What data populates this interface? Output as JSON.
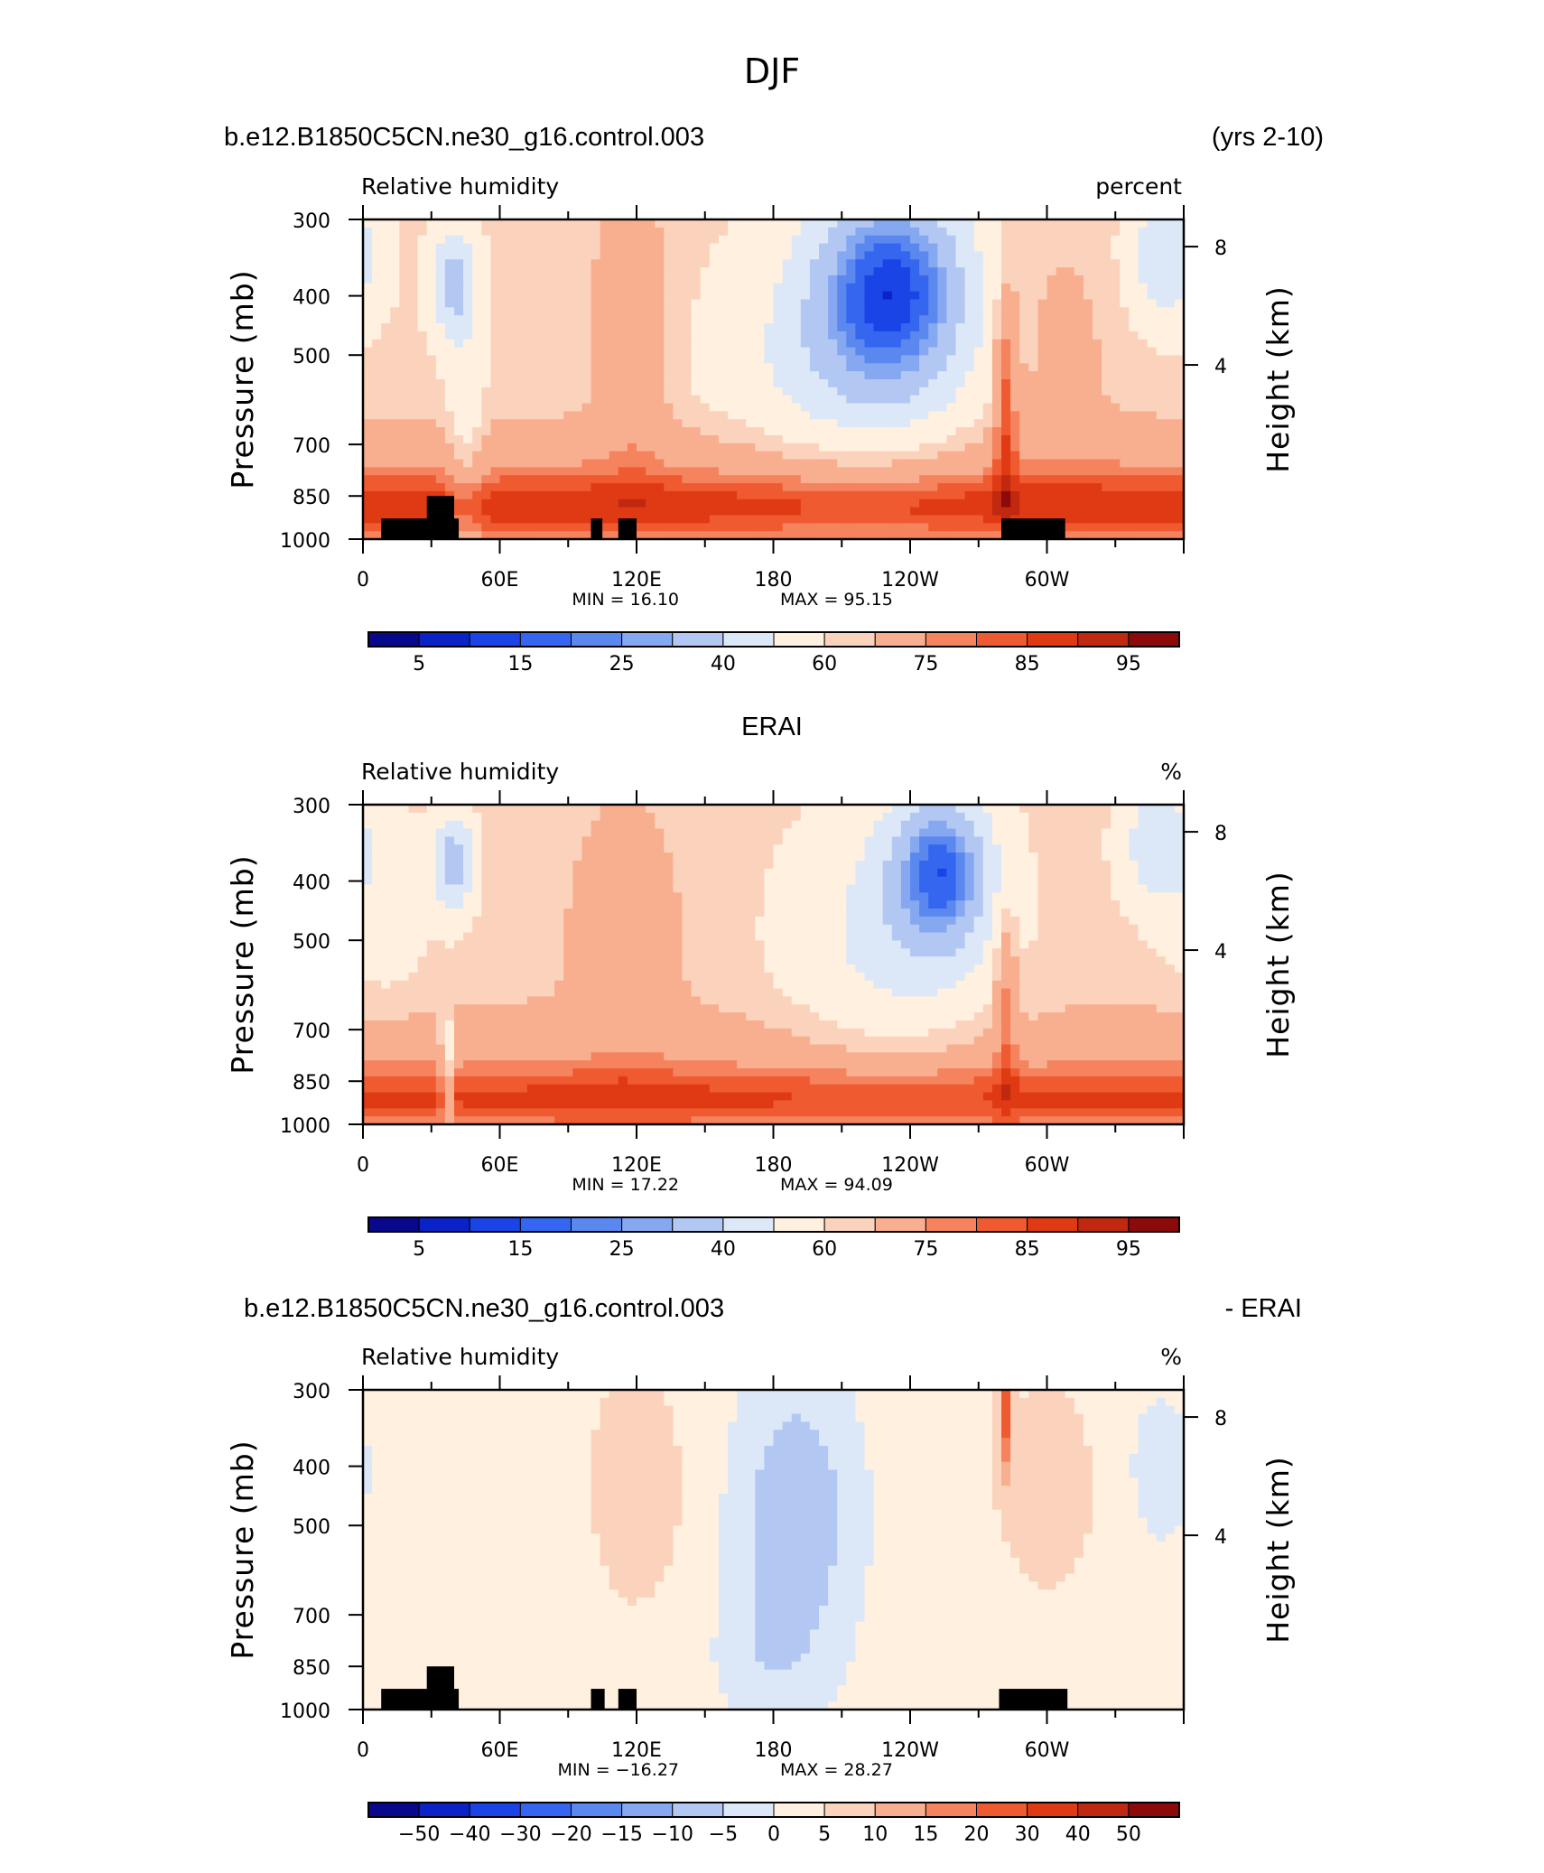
{
  "figure": {
    "title": "DJF",
    "run_name": "b.e12.B1850C5CN.ne30_g16.control.003",
    "years": "(yrs 2-10)",
    "obs_name": "ERAI",
    "diff_suffix": "- ERAI"
  },
  "colors": {
    "abs_scale": [
      "#08088c",
      "#0a22c8",
      "#1a44e6",
      "#3466f0",
      "#5a88ef",
      "#86a8f1",
      "#b2c8f3",
      "#dce8f8",
      "#fff0e0",
      "#fbd3bc",
      "#f8af8f",
      "#f4835e",
      "#f05a30",
      "#e03a14",
      "#c02810",
      "#8c0a0a"
    ],
    "diff_scale": [
      "#08088c",
      "#0a22c8",
      "#1a44e6",
      "#3466f0",
      "#5a88ef",
      "#86a8f1",
      "#b2c8f3",
      "#dce8f8",
      "#fff0e0",
      "#fbd3bc",
      "#f8af8f",
      "#f4835e",
      "#f05a30",
      "#e03a14",
      "#c02810",
      "#8c0a0a"
    ],
    "topography": "#000000"
  },
  "chart_data": [
    {
      "type": "heatmap",
      "title": "Relative humidity",
      "units": "percent",
      "ylabel": "Pressure (mb)",
      "ylabel_right": "Height (km)",
      "x_tick_labels": [
        "0",
        "60E",
        "120E",
        "180",
        "120W",
        "60W"
      ],
      "x_ticks_deg": [
        0,
        60,
        120,
        180,
        240,
        300
      ],
      "xlim_deg": [
        0,
        360
      ],
      "y_tick_labels": [
        "300",
        "400",
        "500",
        "700",
        "850",
        "1000"
      ],
      "y_ticks_mb": [
        300,
        400,
        500,
        700,
        850,
        1000
      ],
      "ylim_mb": [
        300,
        1000
      ],
      "height_tick_labels": [
        "8",
        "4"
      ],
      "height_ticks_km": [
        8,
        4
      ],
      "min_text": "MIN =   16.10",
      "max_text": "MAX =   95.15",
      "min": 16.1,
      "max": 95.15,
      "colorbar_labels": [
        "5",
        "15",
        "25",
        "40",
        "60",
        "75",
        "85",
        "95"
      ],
      "contour_levels": [
        5,
        10,
        15,
        20,
        25,
        30,
        40,
        50,
        60,
        65,
        75,
        80,
        85,
        90,
        95
      ],
      "field": "model",
      "topography_blocks": [
        {
          "lon": [
            8,
            42
          ],
          "p_top": 925
        },
        {
          "lon": [
            28,
            40
          ],
          "p_top": 850
        },
        {
          "lon": [
            100,
            105
          ],
          "p_top": 925
        },
        {
          "lon": [
            112,
            120
          ],
          "p_top": 925
        },
        {
          "lon": [
            280,
            308
          ],
          "p_top": 925
        }
      ]
    },
    {
      "type": "heatmap",
      "title": "Relative humidity",
      "units": "%",
      "ylabel": "Pressure (mb)",
      "ylabel_right": "Height (km)",
      "x_tick_labels": [
        "0",
        "60E",
        "120E",
        "180",
        "120W",
        "60W"
      ],
      "x_ticks_deg": [
        0,
        60,
        120,
        180,
        240,
        300
      ],
      "xlim_deg": [
        0,
        360
      ],
      "y_tick_labels": [
        "300",
        "400",
        "500",
        "700",
        "850",
        "1000"
      ],
      "y_ticks_mb": [
        300,
        400,
        500,
        700,
        850,
        1000
      ],
      "ylim_mb": [
        300,
        1000
      ],
      "height_tick_labels": [
        "8",
        "4"
      ],
      "height_ticks_km": [
        8,
        4
      ],
      "min_text": "MIN =   17.22",
      "max_text": "MAX =   94.09",
      "min": 17.22,
      "max": 94.09,
      "colorbar_labels": [
        "5",
        "15",
        "25",
        "40",
        "60",
        "75",
        "85",
        "95"
      ],
      "contour_levels": [
        5,
        10,
        15,
        20,
        25,
        30,
        40,
        50,
        60,
        65,
        75,
        80,
        85,
        90,
        95
      ],
      "field": "obs",
      "topography_blocks": []
    },
    {
      "type": "heatmap",
      "title": "Relative humidity",
      "units": "%",
      "ylabel": "Pressure (mb)",
      "ylabel_right": "Height (km)",
      "x_tick_labels": [
        "0",
        "60E",
        "120E",
        "180",
        "120W",
        "60W"
      ],
      "x_ticks_deg": [
        0,
        60,
        120,
        180,
        240,
        300
      ],
      "xlim_deg": [
        0,
        360
      ],
      "y_tick_labels": [
        "300",
        "400",
        "500",
        "700",
        "850",
        "1000"
      ],
      "y_ticks_mb": [
        300,
        400,
        500,
        700,
        850,
        1000
      ],
      "ylim_mb": [
        300,
        1000
      ],
      "height_tick_labels": [
        "8",
        "4"
      ],
      "height_ticks_km": [
        8,
        4
      ],
      "min_text": "MIN = −16.27",
      "max_text": "MAX =   28.27",
      "min": -16.27,
      "max": 28.27,
      "colorbar_labels": [
        "−50",
        "−40",
        "−30",
        "−20",
        "−15",
        "−10",
        "−5",
        "0",
        "5",
        "10",
        "15",
        "20",
        "30",
        "40",
        "50"
      ],
      "contour_levels": [
        -50,
        -40,
        -30,
        -20,
        -15,
        -10,
        -5,
        0,
        5,
        10,
        15,
        20,
        30,
        40,
        50
      ],
      "field": "diff",
      "topography_blocks": [
        {
          "lon": [
            8,
            42
          ],
          "p_top": 925
        },
        {
          "lon": [
            28,
            40
          ],
          "p_top": 850
        },
        {
          "lon": [
            100,
            106
          ],
          "p_top": 925
        },
        {
          "lon": [
            112,
            120
          ],
          "p_top": 925
        },
        {
          "lon": [
            279,
            309
          ],
          "p_top": 925
        }
      ]
    }
  ]
}
